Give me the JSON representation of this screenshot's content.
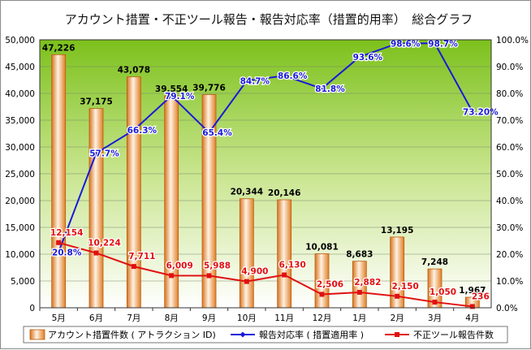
{
  "chart_data": {
    "type": "bar",
    "title": "アカウント措置・不正ツール報告・報告対応率（措置的用率）　総合グラフ",
    "categories": [
      "5月",
      "6月",
      "7月",
      "8月",
      "9月",
      "10月",
      "11月",
      "12月",
      "1月",
      "2月",
      "3月",
      "4月"
    ],
    "ylim_left": [
      0,
      50000
    ],
    "ylim_right": [
      0,
      100
    ],
    "left_ticks": [
      "0",
      "5,000",
      "10,000",
      "15,000",
      "20,000",
      "25,000",
      "30,000",
      "35,000",
      "40,000",
      "45,000",
      "50,000"
    ],
    "right_ticks": [
      "0.0%",
      "10.0%",
      "20.0%",
      "30.0%",
      "40.0%",
      "50.0%",
      "60.0%",
      "70.0%",
      "80.0%",
      "90.0%",
      "100.0%"
    ],
    "grid": true,
    "legend_position": "bottom",
    "series": [
      {
        "name": "アカウント措置件数 ( アトラクション ID)",
        "kind": "bar",
        "axis": "left",
        "color": "#f0a24a",
        "values": [
          47226,
          37175,
          43078,
          39554,
          39776,
          20344,
          20146,
          10081,
          8683,
          13195,
          7248,
          1967
        ],
        "labels": [
          "47,226",
          "37,175",
          "43,078",
          "39,554",
          "39,776",
          "20,344",
          "20,146",
          "10,081",
          "8,683",
          "13,195",
          "7,248",
          "1,967"
        ]
      },
      {
        "name": "報告対応率 ( 措置適用率 )",
        "kind": "line",
        "axis": "right",
        "color": "#1a1ad8",
        "values": [
          20.8,
          57.7,
          66.3,
          79.1,
          65.4,
          84.7,
          86.6,
          81.8,
          93.6,
          98.6,
          98.7,
          73.2
        ],
        "labels": [
          "20.8%",
          "57.7%",
          "66.3%",
          "79.1%",
          "65.4%",
          "84.7%",
          "86.6%",
          "81.8%",
          "93.6%",
          "98.6%",
          "98.7%",
          "73.20%"
        ]
      },
      {
        "name": "不正ツール報告件数",
        "kind": "line",
        "axis": "left",
        "color": "#e01010",
        "values": [
          12154,
          10224,
          7711,
          6009,
          5988,
          4900,
          6130,
          2506,
          2882,
          2150,
          1050,
          236
        ],
        "labels": [
          "12,154",
          "10,224",
          "7,711",
          "6,009",
          "5,988",
          "4,900",
          "6,130",
          "2,506",
          "2,882",
          "2,150",
          "1,050",
          "236"
        ]
      }
    ]
  }
}
